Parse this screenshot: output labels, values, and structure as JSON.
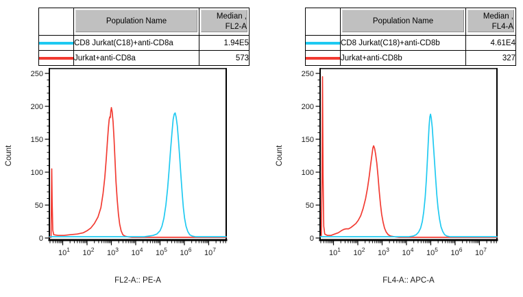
{
  "colors": {
    "cyan": "#1EC9F1",
    "red": "#F23A31",
    "header_bg": "#C0C0C0",
    "axis": "#000000",
    "text": "#1A1A1A",
    "background": "#FFFFFF"
  },
  "panels": [
    {
      "id": "fl2",
      "legend": {
        "header": {
          "population": "Population Name",
          "median_line1": "Median ,",
          "median_line2": "FL2-A"
        },
        "rows": [
          {
            "name": "CD8 Jurkat(C18)+anti-CD8a",
            "median": "1.94E5",
            "swatch_color": "#1EC9F1"
          },
          {
            "name": "Jurkat+anti-CD8a",
            "median": "573",
            "swatch_color": "#F23A31"
          }
        ]
      }
    },
    {
      "id": "fl4",
      "legend": {
        "header": {
          "population": "Population Name",
          "median_line1": "Median ,",
          "median_line2": "FL4-A"
        },
        "rows": [
          {
            "name": "CD8 Jurkat(C18)+anti-CD8b",
            "median": "4.61E4",
            "swatch_color": "#1EC9F1"
          },
          {
            "name": "Jurkat+anti-CD8b",
            "median": "327",
            "swatch_color": "#F23A31"
          }
        ]
      }
    }
  ],
  "chart_data": [
    {
      "type": "line",
      "title": "",
      "xlabel": "FL2-A:: PE-A",
      "ylabel": "Count",
      "x_scale": "log10",
      "xlim_log": [
        0.45,
        7.72
      ],
      "ylim": [
        0,
        250
      ],
      "yticks": [
        0,
        50,
        100,
        150,
        200,
        250
      ],
      "xtick_decades": [
        1,
        2,
        3,
        4,
        5,
        6,
        7
      ],
      "grid": false,
      "legend_position": "table-above",
      "series": [
        {
          "name": "Jurkat+anti-CD8a",
          "color": "#F23A31",
          "median": 573,
          "peak": {
            "x": 1000,
            "count": 198
          },
          "points_logx_count": [
            [
              0.46,
              1
            ],
            [
              0.52,
              1
            ],
            [
              0.535,
              55
            ],
            [
              0.55,
              105
            ],
            [
              0.565,
              55
            ],
            [
              0.59,
              12
            ],
            [
              0.63,
              5
            ],
            [
              0.8,
              4
            ],
            [
              1.05,
              4
            ],
            [
              1.3,
              5
            ],
            [
              1.6,
              6
            ],
            [
              1.85,
              8
            ],
            [
              2.0,
              11
            ],
            [
              2.15,
              15
            ],
            [
              2.3,
              22
            ],
            [
              2.45,
              32
            ],
            [
              2.57,
              46
            ],
            [
              2.66,
              68
            ],
            [
              2.73,
              92
            ],
            [
              2.79,
              120
            ],
            [
              2.84,
              148
            ],
            [
              2.88,
              168
            ],
            [
              2.91,
              180
            ],
            [
              2.935,
              184
            ],
            [
              2.955,
              183
            ],
            [
              2.975,
              192
            ],
            [
              3.0,
              198
            ],
            [
              3.03,
              192
            ],
            [
              3.07,
              176
            ],
            [
              3.11,
              150
            ],
            [
              3.15,
              118
            ],
            [
              3.19,
              86
            ],
            [
              3.24,
              58
            ],
            [
              3.29,
              36
            ],
            [
              3.34,
              21
            ],
            [
              3.4,
              11
            ],
            [
              3.47,
              5
            ],
            [
              3.55,
              3
            ],
            [
              3.65,
              2
            ],
            [
              3.85,
              1
            ],
            [
              4.3,
              1
            ],
            [
              5.0,
              1
            ],
            [
              6.0,
              1
            ],
            [
              7.0,
              1
            ],
            [
              7.72,
              1
            ]
          ]
        },
        {
          "name": "CD8 Jurkat(C18)+anti-CD8a",
          "color": "#1EC9F1",
          "median": 194000,
          "peak": {
            "x": 400000,
            "count": 190
          },
          "points_logx_count": [
            [
              0.46,
              2
            ],
            [
              1.2,
              2
            ],
            [
              2.2,
              2
            ],
            [
              3.2,
              2
            ],
            [
              4.0,
              2
            ],
            [
              4.35,
              2
            ],
            [
              4.55,
              3
            ],
            [
              4.72,
              4
            ],
            [
              4.87,
              6
            ],
            [
              5.0,
              11
            ],
            [
              5.08,
              18
            ],
            [
              5.16,
              30
            ],
            [
              5.24,
              50
            ],
            [
              5.31,
              75
            ],
            [
              5.37,
              102
            ],
            [
              5.43,
              132
            ],
            [
              5.49,
              160
            ],
            [
              5.54,
              180
            ],
            [
              5.58,
              188
            ],
            [
              5.62,
              190
            ],
            [
              5.66,
              184
            ],
            [
              5.71,
              170
            ],
            [
              5.76,
              148
            ],
            [
              5.81,
              122
            ],
            [
              5.86,
              94
            ],
            [
              5.91,
              68
            ],
            [
              5.96,
              46
            ],
            [
              6.01,
              30
            ],
            [
              6.07,
              18
            ],
            [
              6.14,
              10
            ],
            [
              6.22,
              5
            ],
            [
              6.32,
              3
            ],
            [
              6.45,
              2
            ],
            [
              7.0,
              2
            ],
            [
              7.72,
              2
            ]
          ]
        }
      ]
    },
    {
      "type": "line",
      "title": "",
      "xlabel": "FL4-A:: APC-A",
      "ylabel": "Count",
      "x_scale": "log10",
      "xlim_log": [
        0.45,
        7.72
      ],
      "ylim": [
        0,
        250
      ],
      "yticks": [
        0,
        50,
        100,
        150,
        200,
        250
      ],
      "xtick_decades": [
        1,
        2,
        3,
        4,
        5,
        6,
        7
      ],
      "grid": false,
      "legend_position": "table-above",
      "series": [
        {
          "name": "Jurkat+anti-CD8b",
          "color": "#F23A31",
          "median": 327,
          "peak": {
            "x": 430,
            "count": 140
          },
          "points_logx_count": [
            [
              0.46,
              2
            ],
            [
              0.5,
              4
            ],
            [
              0.53,
              90
            ],
            [
              0.55,
              245
            ],
            [
              0.57,
              95
            ],
            [
              0.6,
              18
            ],
            [
              0.64,
              6
            ],
            [
              0.75,
              4
            ],
            [
              0.9,
              4
            ],
            [
              1.05,
              6
            ],
            [
              1.2,
              8
            ],
            [
              1.32,
              11
            ],
            [
              1.42,
              13
            ],
            [
              1.52,
              14
            ],
            [
              1.62,
              14
            ],
            [
              1.72,
              16
            ],
            [
              1.82,
              19
            ],
            [
              1.92,
              22
            ],
            [
              2.02,
              27
            ],
            [
              2.12,
              34
            ],
            [
              2.22,
              45
            ],
            [
              2.32,
              60
            ],
            [
              2.4,
              76
            ],
            [
              2.47,
              94
            ],
            [
              2.53,
              112
            ],
            [
              2.58,
              126
            ],
            [
              2.62,
              137
            ],
            [
              2.65,
              140
            ],
            [
              2.69,
              136
            ],
            [
              2.73,
              128
            ],
            [
              2.78,
              114
            ],
            [
              2.83,
              94
            ],
            [
              2.88,
              72
            ],
            [
              2.93,
              52
            ],
            [
              2.98,
              36
            ],
            [
              3.04,
              24
            ],
            [
              3.1,
              15
            ],
            [
              3.17,
              9
            ],
            [
              3.25,
              5
            ],
            [
              3.35,
              3
            ],
            [
              3.5,
              2
            ],
            [
              3.7,
              1
            ],
            [
              4.3,
              1
            ],
            [
              5.2,
              1
            ],
            [
              6.2,
              1
            ],
            [
              7.2,
              1
            ],
            [
              7.72,
              1
            ]
          ]
        },
        {
          "name": "CD8 Jurkat(C18)+anti-CD8b",
          "color": "#1EC9F1",
          "median": 46100,
          "peak": {
            "x": 90000,
            "count": 188
          },
          "points_logx_count": [
            [
              0.46,
              2
            ],
            [
              1.3,
              2
            ],
            [
              2.3,
              2
            ],
            [
              3.3,
              2
            ],
            [
              3.9,
              2
            ],
            [
              4.1,
              2
            ],
            [
              4.28,
              3
            ],
            [
              4.4,
              5
            ],
            [
              4.5,
              9
            ],
            [
              4.58,
              15
            ],
            [
              4.65,
              25
            ],
            [
              4.71,
              40
            ],
            [
              4.77,
              62
            ],
            [
              4.82,
              90
            ],
            [
              4.86,
              118
            ],
            [
              4.9,
              148
            ],
            [
              4.93,
              170
            ],
            [
              4.96,
              184
            ],
            [
              4.99,
              188
            ],
            [
              5.02,
              182
            ],
            [
              5.06,
              168
            ],
            [
              5.1,
              146
            ],
            [
              5.15,
              118
            ],
            [
              5.2,
              90
            ],
            [
              5.25,
              65
            ],
            [
              5.3,
              45
            ],
            [
              5.36,
              29
            ],
            [
              5.42,
              17
            ],
            [
              5.49,
              10
            ],
            [
              5.57,
              5
            ],
            [
              5.66,
              3
            ],
            [
              5.78,
              2
            ],
            [
              6.3,
              2
            ],
            [
              7.0,
              2
            ],
            [
              7.72,
              2
            ]
          ]
        }
      ]
    }
  ]
}
